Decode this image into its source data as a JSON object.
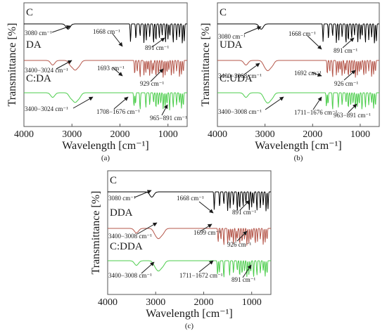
{
  "chart_data": [
    {
      "panel_label": "(a)",
      "type": "line",
      "xlabel": "Wavelength [cm⁻¹]",
      "ylabel": "Transmittance [%]",
      "xlim": [
        4000,
        600
      ],
      "x_ticks": [
        "4000",
        "3000",
        "2000",
        "1000"
      ],
      "series": [
        {
          "name": "C",
          "color": "#000000",
          "peaks": [
            3080,
            1780,
            1668,
            1580,
            1500,
            1450,
            1380,
            1300,
            1250,
            1180,
            1120,
            1050,
            1000,
            960,
            891,
            820,
            760,
            700,
            660
          ]
        },
        {
          "name": "DA",
          "color": "#b5574b",
          "peaks": [
            3400,
            3024,
            2950,
            2920,
            2850,
            1693,
            1640,
            1580,
            1500,
            1460,
            1420,
            1380,
            1330,
            1300,
            1250,
            1200,
            1150,
            1100,
            1060,
            1020,
            980,
            929,
            880,
            820,
            760,
            720,
            680
          ]
        },
        {
          "name": "C:DA",
          "color": "#4ccd4c",
          "peaks": [
            3400,
            3024,
            2950,
            2920,
            2850,
            1708,
            1676,
            1580,
            1460,
            1380,
            1300,
            1250,
            1200,
            1150,
            1100,
            1060,
            1020,
            965,
            891,
            820,
            760,
            720,
            680
          ]
        }
      ],
      "annotations": [
        "3080 cm⁻¹",
        "1668 cm⁻¹",
        "891 cm⁻¹",
        "3400−3024 cm⁻¹",
        "1693 cm⁻¹",
        "929 cm⁻¹",
        "3400−3024 cm⁻¹",
        "1708−1676 cm⁻¹",
        "965−891 cm⁻¹"
      ]
    },
    {
      "panel_label": "(b)",
      "type": "line",
      "xlabel": "Wavelength [cm⁻¹]",
      "ylabel": "Transmittance [%]",
      "xlim": [
        4000,
        600
      ],
      "x_ticks": [
        "4000",
        "3000",
        "2000",
        "1000"
      ],
      "series": [
        {
          "name": "C",
          "color": "#000000",
          "peaks": [
            3080,
            1780,
            1668,
            1580,
            1500,
            1450,
            1380,
            1300,
            1250,
            1180,
            1120,
            1050,
            1000,
            960,
            891,
            820,
            760,
            700,
            660
          ]
        },
        {
          "name": "UDA",
          "color": "#b5574b",
          "peaks": [
            3400,
            3008,
            2950,
            2920,
            2850,
            1692,
            1640,
            1580,
            1500,
            1460,
            1420,
            1380,
            1330,
            1300,
            1250,
            1200,
            1150,
            1100,
            1060,
            1020,
            980,
            926,
            880,
            820,
            760,
            720,
            680
          ]
        },
        {
          "name": "C:UDA",
          "color": "#4ccd4c",
          "peaks": [
            3400,
            3008,
            2950,
            2920,
            2850,
            1711,
            1676,
            1580,
            1460,
            1380,
            1300,
            1250,
            1200,
            1150,
            1100,
            1060,
            1020,
            963,
            891,
            820,
            760,
            720,
            680
          ]
        }
      ],
      "annotations": [
        "3080 cm⁻¹",
        "1668 cm⁻¹",
        "891 cm⁻¹",
        "3400−3008 cm⁻¹",
        "1692 cm⁻¹",
        "926 cm⁻¹",
        "3400−3008 cm⁻¹",
        "1711−1676 cm⁻¹",
        "963−891 cm⁻¹"
      ]
    },
    {
      "panel_label": "(c)",
      "type": "line",
      "xlabel": "Wavelength [cm⁻¹]",
      "ylabel": "Transmittance [%]",
      "xlim": [
        4000,
        600
      ],
      "x_ticks": [
        "4000",
        "3000",
        "2000",
        "1000"
      ],
      "series": [
        {
          "name": "C",
          "color": "#000000",
          "peaks": [
            3080,
            1780,
            1668,
            1580,
            1500,
            1450,
            1380,
            1300,
            1250,
            1180,
            1120,
            1050,
            1000,
            960,
            891,
            820,
            760,
            700,
            660
          ]
        },
        {
          "name": "DDA",
          "color": "#b5574b",
          "peaks": [
            3400,
            3008,
            2950,
            2920,
            2850,
            1699,
            1640,
            1580,
            1500,
            1460,
            1420,
            1380,
            1330,
            1300,
            1250,
            1200,
            1150,
            1100,
            1060,
            1020,
            980,
            926,
            880,
            820,
            760,
            720,
            680
          ]
        },
        {
          "name": "C:DDA",
          "color": "#4ccd4c",
          "peaks": [
            3400,
            3008,
            2950,
            2920,
            2850,
            1711,
            1672,
            1580,
            1460,
            1380,
            1300,
            1250,
            1200,
            1150,
            1100,
            1060,
            1020,
            960,
            891,
            820,
            760,
            720,
            680
          ]
        }
      ],
      "annotations": [
        "3080 cm⁻¹",
        "1668 cm⁻¹",
        "891 cm⁻¹",
        "3400−3008 cm⁻¹",
        "1699 cm⁻¹",
        "926 cm⁻¹",
        "3400−3008 cm⁻¹",
        "1711−1672 cm⁻¹",
        "891 cm⁻¹"
      ]
    }
  ]
}
